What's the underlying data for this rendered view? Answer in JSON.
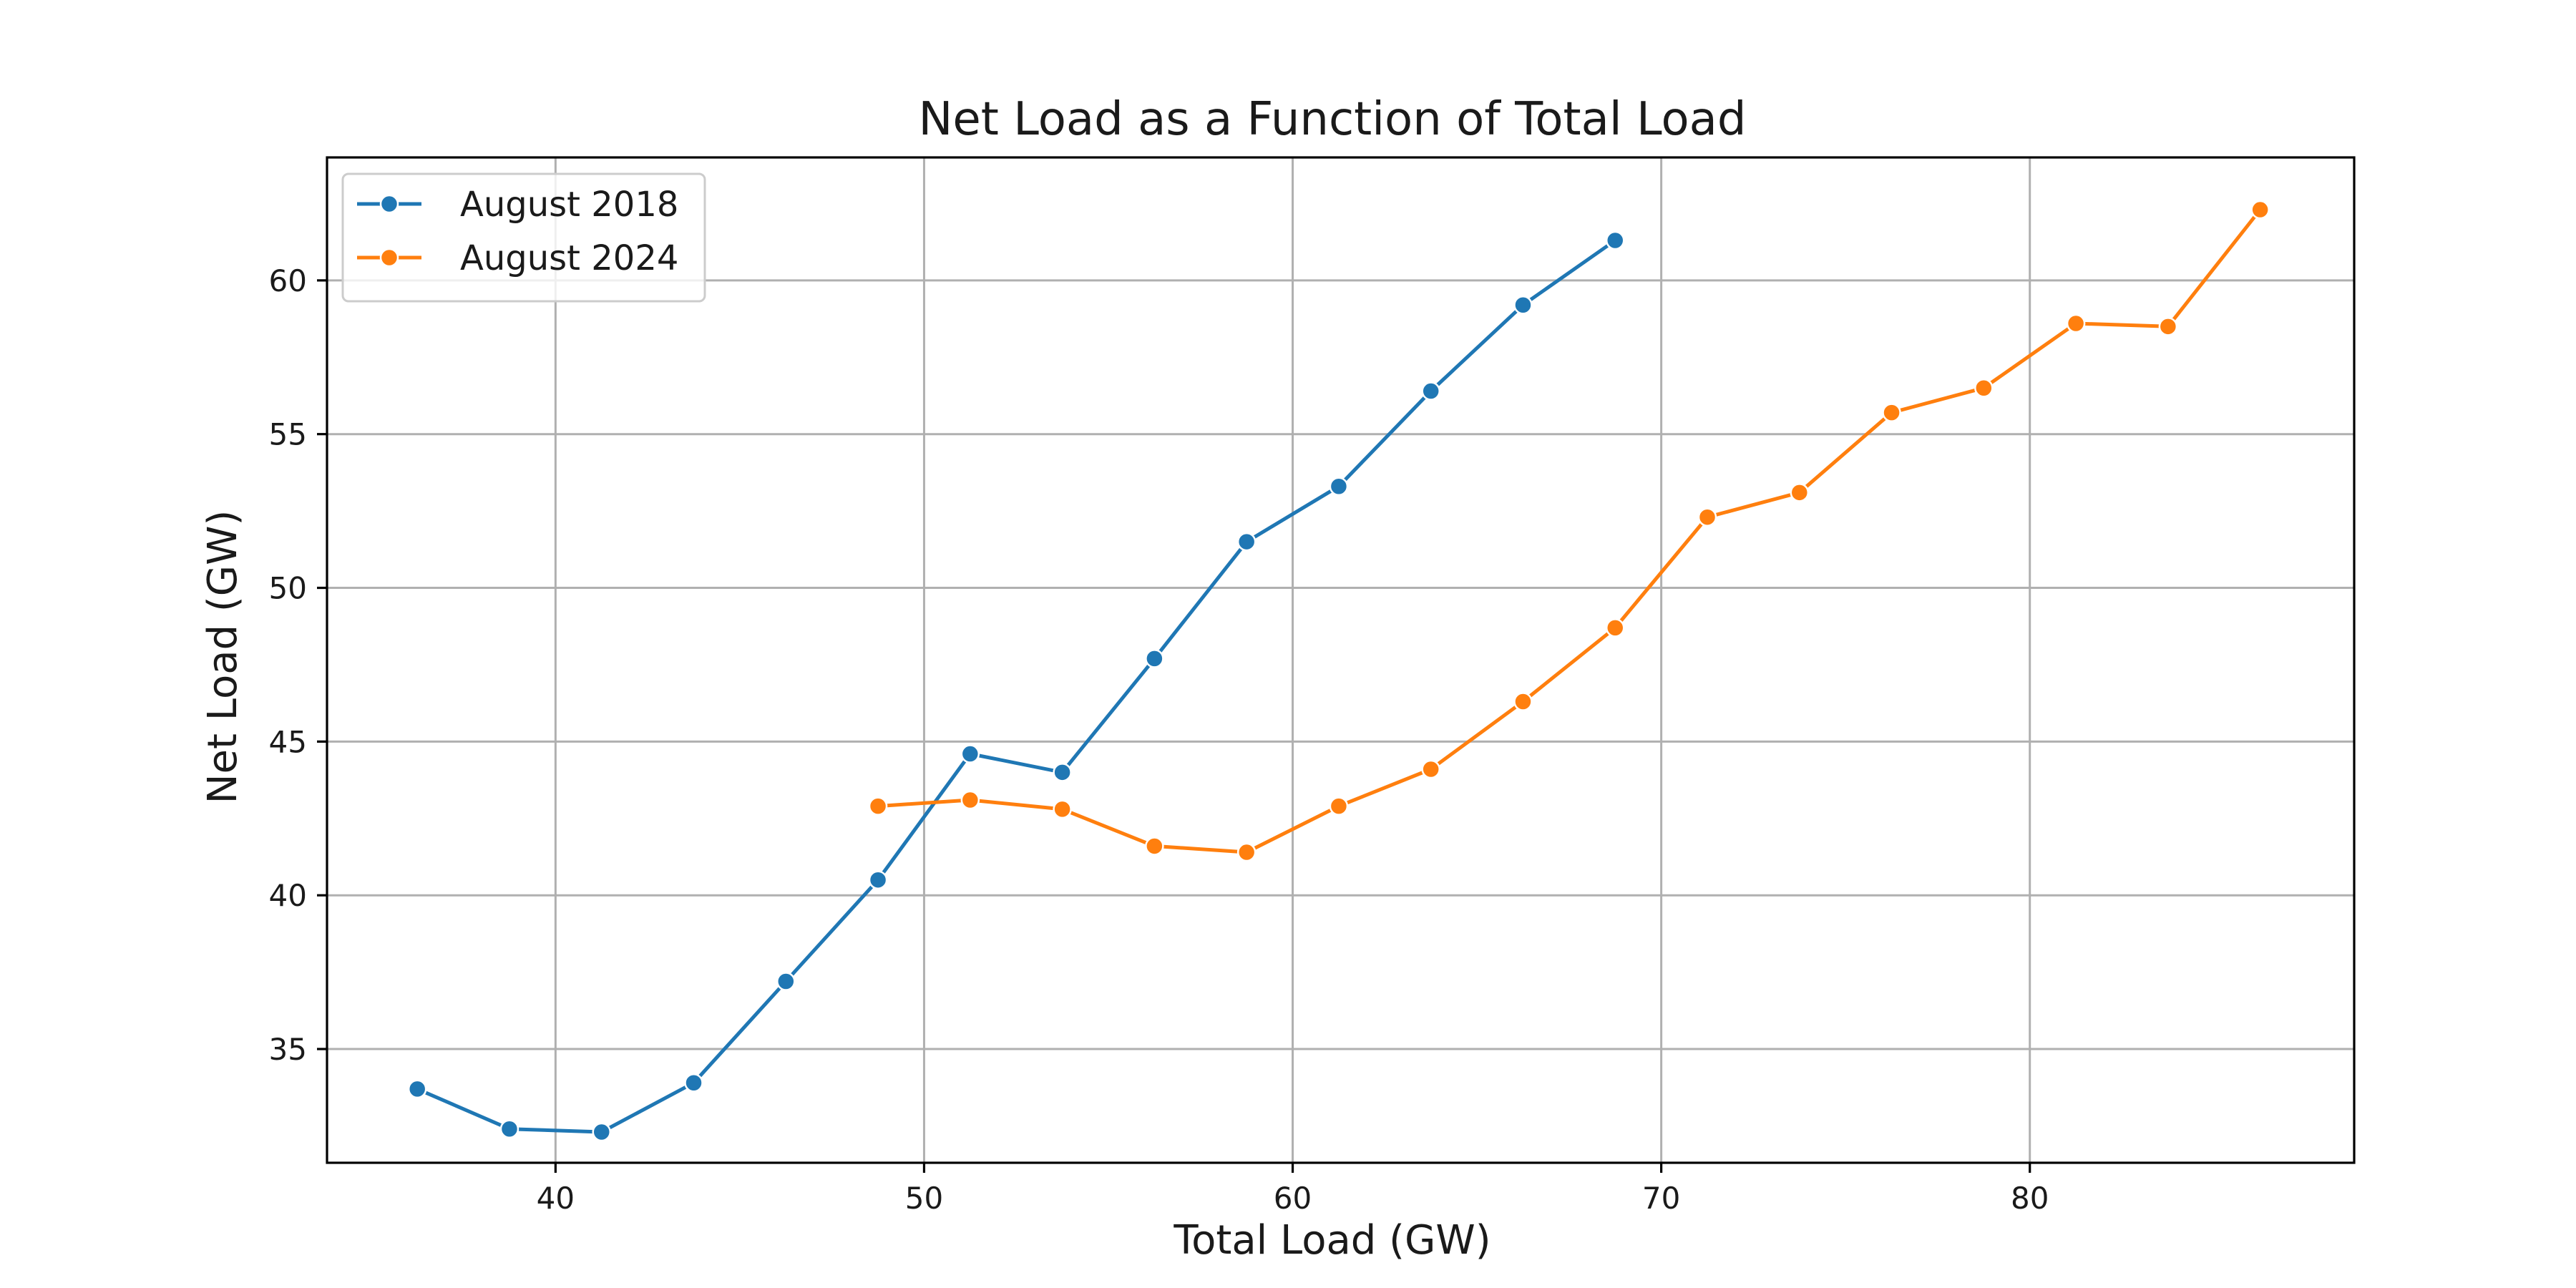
{
  "chart_data": {
    "type": "line",
    "title": "Net Load as a Function of Total Load",
    "xlabel": "Total Load (GW)",
    "ylabel": "Net Load (GW)",
    "xlim": [
      33.8,
      88.8
    ],
    "ylim": [
      31.3,
      64.0
    ],
    "xticks": [
      40,
      50,
      60,
      70,
      80
    ],
    "yticks": [
      35,
      40,
      45,
      50,
      55,
      60
    ],
    "grid": true,
    "legend_position": "top-left",
    "series": [
      {
        "name": "August 2018",
        "color": "#1f77b4",
        "marker": "circle",
        "x": [
          36.25,
          38.75,
          41.25,
          43.75,
          46.25,
          48.75,
          51.25,
          53.75,
          56.25,
          58.75,
          61.25,
          63.75,
          66.25,
          68.75
        ],
        "y": [
          33.7,
          32.4,
          32.3,
          33.9,
          37.2,
          40.5,
          44.6,
          44.0,
          47.7,
          51.5,
          53.3,
          56.4,
          59.2,
          61.3
        ]
      },
      {
        "name": "August 2024",
        "color": "#ff7f0e",
        "marker": "circle",
        "x": [
          48.75,
          51.25,
          53.75,
          56.25,
          58.75,
          61.25,
          63.75,
          66.25,
          68.75,
          71.25,
          73.75,
          76.25,
          78.75,
          81.25,
          83.75,
          86.25
        ],
        "y": [
          42.9,
          43.1,
          42.8,
          41.6,
          41.4,
          42.9,
          44.1,
          46.3,
          48.7,
          52.3,
          53.1,
          55.7,
          56.5,
          58.6,
          58.5,
          62.3
        ]
      }
    ]
  }
}
